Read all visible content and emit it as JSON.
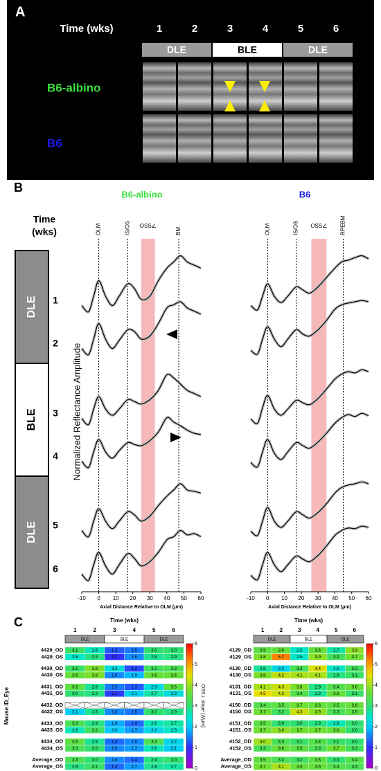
{
  "panel_a": {
    "label": "A",
    "time_label": "Time (wks)",
    "weeks": [
      1,
      2,
      3,
      4,
      5,
      6
    ],
    "phases": [
      "DLE",
      "BLE",
      "DLE"
    ],
    "rows": [
      "B6-albino",
      "B6"
    ]
  },
  "panel_b": {
    "label": "B",
    "titles": [
      "B6-albino",
      "B6"
    ],
    "time_label": [
      "Time",
      "(wks)"
    ],
    "weeks": [
      1,
      2,
      3,
      4,
      5,
      6
    ],
    "phases": [
      "DLE",
      "BLE",
      "DLE"
    ],
    "y_label": "Normalized Reflectance Amplitude"
  },
  "panel_c": {
    "label": "C",
    "row_axis_label": "Mouse ID_Eye"
  },
  "chart_data": [
    {
      "type": "line",
      "xlabel": "Axial Distance Relative to OLM (μm)",
      "x": [
        -10,
        -6,
        -3,
        0,
        4,
        8,
        12,
        17,
        21,
        25,
        30,
        35,
        40,
        44,
        48,
        52,
        56,
        60
      ],
      "xlim": [
        -10,
        60
      ],
      "xticks": [
        -10,
        0,
        10,
        20,
        30,
        40,
        50,
        60
      ],
      "markers": [
        {
          "label": "OLM",
          "x": 0
        },
        {
          "label": "IS/OS",
          "x": 17
        },
        {
          "label": "BM",
          "x": 47
        }
      ],
      "band": {
        "label": "OSS∠",
        "range": [
          25,
          33
        ]
      },
      "band_color": "#f6b8b8",
      "color": "#000000",
      "series": [
        {
          "values": [
            0.15,
            0.05,
            0.3,
            0.55,
            0.3,
            0.15,
            0.3,
            0.5,
            0.42,
            0.25,
            0.3,
            0.55,
            0.75,
            0.85,
            0.95,
            0.85,
            0.8,
            0.75
          ]
        },
        {
          "values": [
            0.15,
            0.05,
            0.3,
            0.55,
            0.3,
            0.15,
            0.28,
            0.45,
            0.42,
            0.3,
            0.35,
            0.55,
            0.8,
            0.85,
            0.9,
            0.8,
            0.75,
            0.7
          ]
        },
        {
          "values": [
            0.15,
            0.05,
            0.3,
            0.5,
            0.3,
            0.2,
            0.3,
            0.45,
            0.42,
            0.38,
            0.45,
            0.6,
            0.85,
            0.8,
            0.7,
            0.6,
            0.55,
            0.5
          ]
        },
        {
          "values": [
            0.15,
            0.05,
            0.3,
            0.5,
            0.3,
            0.2,
            0.32,
            0.45,
            0.42,
            0.4,
            0.48,
            0.62,
            0.85,
            0.78,
            0.72,
            0.65,
            0.6,
            0.58
          ]
        },
        {
          "values": [
            0.15,
            0.05,
            0.3,
            0.5,
            0.3,
            0.18,
            0.3,
            0.45,
            0.4,
            0.3,
            0.38,
            0.55,
            0.7,
            0.8,
            0.9,
            0.8,
            0.78,
            0.75
          ]
        },
        {
          "values": [
            0.15,
            0.05,
            0.3,
            0.5,
            0.28,
            0.15,
            0.3,
            0.48,
            0.4,
            0.28,
            0.35,
            0.5,
            0.7,
            0.75,
            0.85,
            0.78,
            0.8,
            0.75
          ]
        }
      ]
    },
    {
      "type": "line",
      "xlabel": "Axial Distance Relative to OLM (μm)",
      "x": [
        -10,
        -6,
        -3,
        0,
        4,
        8,
        12,
        17,
        21,
        25,
        30,
        35,
        40,
        44,
        48,
        52,
        56,
        60
      ],
      "xlim": [
        -10,
        60
      ],
      "xticks": [
        -10,
        0,
        10,
        20,
        30,
        40,
        50,
        60
      ],
      "markers": [
        {
          "label": "OLM",
          "x": 0
        },
        {
          "label": "IS/OS",
          "x": 17
        },
        {
          "label": "RPEBM",
          "x": 45
        }
      ],
      "band": {
        "label": "OSS∠",
        "range": [
          26,
          35
        ]
      },
      "band_color": "#f6b8b8",
      "color": "#000000",
      "series": [
        {
          "values": [
            0.15,
            0.08,
            0.3,
            0.5,
            0.3,
            0.2,
            0.3,
            0.45,
            0.4,
            0.35,
            0.45,
            0.6,
            0.75,
            0.85,
            0.88,
            0.92,
            0.95,
            0.9
          ]
        },
        {
          "values": [
            0.12,
            0.06,
            0.3,
            0.5,
            0.3,
            0.18,
            0.3,
            0.45,
            0.38,
            0.35,
            0.45,
            0.6,
            0.78,
            0.85,
            0.88,
            0.9,
            0.92,
            0.9
          ]
        },
        {
          "values": [
            0.14,
            0.07,
            0.32,
            0.52,
            0.3,
            0.2,
            0.3,
            0.44,
            0.4,
            0.37,
            0.47,
            0.62,
            0.78,
            0.86,
            0.9,
            0.88,
            0.93,
            0.9
          ]
        },
        {
          "values": [
            0.13,
            0.06,
            0.3,
            0.5,
            0.28,
            0.18,
            0.3,
            0.45,
            0.4,
            0.36,
            0.46,
            0.6,
            0.76,
            0.85,
            0.9,
            0.87,
            0.92,
            0.88
          ]
        },
        {
          "values": [
            0.14,
            0.07,
            0.3,
            0.52,
            0.3,
            0.2,
            0.3,
            0.45,
            0.4,
            0.35,
            0.44,
            0.58,
            0.75,
            0.84,
            0.88,
            0.9,
            0.93,
            0.9
          ]
        },
        {
          "values": [
            0.13,
            0.06,
            0.3,
            0.5,
            0.3,
            0.19,
            0.3,
            0.44,
            0.39,
            0.35,
            0.45,
            0.6,
            0.77,
            0.85,
            0.89,
            0.88,
            0.92,
            0.9
          ]
        }
      ]
    },
    {
      "type": "heatmap",
      "column_label": "Time (wks)",
      "columns": [
        1,
        2,
        3,
        4,
        5,
        6
      ],
      "phases": [
        "DLE",
        "BLE",
        "DLE"
      ],
      "rows": [
        "4429_OD",
        "4429_OS",
        "4430_OD",
        "4430_OS",
        "4431_OD",
        "4431_OS",
        "4432_OD",
        "4432_OS",
        "4433_OD",
        "4433_OS",
        "4434_OD",
        "4434_OS",
        "Average_OD",
        "Average_OS"
      ],
      "values": [
        [
          3.1,
          2.6,
          1.3,
          1.5,
          3.0,
          3.0
        ],
        [
          2.5,
          2.9,
          1.0,
          1.6,
          2.8,
          2.9
        ],
        [
          3.1,
          3.8,
          2.3,
          1.2,
          3.2,
          3.3
        ],
        [
          3.6,
          3.8,
          1.6,
          1.9,
          3.6,
          3.6
        ],
        [
          3.5,
          2.8,
          1.5,
          1.3,
          2.3,
          3.5
        ],
        [
          3.0,
          2.9,
          1.1,
          2.1,
          2.7,
          2.3
        ],
        [
          null,
          null,
          null,
          null,
          null,
          null
        ],
        [
          2.1,
          2.8,
          1.6,
          1.5,
          3.0,
          2.9
        ],
        [
          3.3,
          2.9,
          1.8,
          1.4,
          2.6,
          2.7
        ],
        [
          2.6,
          3.2,
          2.0,
          1.7,
          2.2,
          2.5
        ],
        [
          3.5,
          2.8,
          1.4,
          1.6,
          3.3,
          2.2
        ],
        [
          3.3,
          3.0,
          1.6,
          1.7,
          2.6,
          2.1
        ],
        [
          3.3,
          3.0,
          1.6,
          1.4,
          2.9,
          3.0
        ],
        [
          2.9,
          3.1,
          1.4,
          1.7,
          2.8,
          2.7
        ]
      ],
      "value_labels": [
        [
          "3.1",
          "2.6",
          "1.3",
          "1.5",
          "3.0",
          "3.0"
        ],
        [
          "2.5",
          "2.9",
          "1.0",
          "1.6",
          "2.8",
          "2.9"
        ],
        [
          "3.1",
          "3.8",
          "2.3",
          "1.2",
          "3.2",
          "3.3"
        ],
        [
          "3.6",
          "3.8",
          "1.6",
          "1.9",
          "3.6",
          "3.6"
        ],
        [
          "3.5",
          "2.8",
          "1.5",
          "1.3",
          "2.3",
          "3.5"
        ],
        [
          "3.0",
          "2.9",
          "1.1",
          "2.1",
          "2.7",
          "2.3"
        ],
        [
          null,
          null,
          null,
          null,
          null,
          null
        ],
        [
          "2.1",
          "2.8",
          "1.6",
          "1.5",
          "3.0",
          "2.9"
        ],
        [
          "3.3",
          "2.9",
          "1.8",
          "1.4",
          "2.6",
          "2.7"
        ],
        [
          "2.6",
          "3.2",
          "2.0",
          "1.7",
          "2.2",
          "2.5"
        ],
        [
          "3.5",
          "2.8",
          "1.4",
          "1.6",
          "3.3",
          "2.2"
        ],
        [
          "3.3",
          "3.0",
          "1.6",
          "1.7",
          "2.6",
          "2.1"
        ],
        [
          "3.3",
          "3.0",
          "1.6",
          "1.4",
          "2.9",
          "3.0"
        ],
        [
          "2.9",
          "3.1",
          "1.4",
          "1.7",
          "2.8",
          "2.7"
        ]
      ],
      "zlim": [
        0,
        6
      ],
      "zticks": [
        0,
        1,
        2,
        3,
        4,
        5,
        6
      ],
      "colorbar_label": "OSS⊥ slope (Δ/μm)"
    },
    {
      "type": "heatmap",
      "column_label": "Time (wks)",
      "columns": [
        1,
        2,
        3,
        4,
        5,
        6
      ],
      "phases": [
        "DLE",
        "BLE",
        "DLE"
      ],
      "rows": [
        "4129_OD",
        "4129_OS",
        "4130_OD",
        "4130_OS",
        "4131_OD",
        "4131_OS",
        "4150_OD",
        "4150_OS",
        "4151_OD",
        "4151_OS",
        "4152_OD",
        "4152_OS",
        "Average_OD",
        "Average_OS"
      ],
      "values": [
        [
          3.5,
          3.6,
          2.5,
          3.6,
          2.7,
          3.9
        ],
        [
          3.8,
          5.2,
          2.5,
          3.9,
          3.2,
          3.7
        ],
        [
          2.8,
          2.2,
          3.3,
          4.4,
          2.5,
          3.2
        ],
        [
          3.8,
          4.2,
          4.1,
          4.1,
          2.9,
          3.1
        ],
        [
          4.1,
          4.3,
          3.8,
          2.9,
          3.4,
          3.6
        ],
        [
          4.5,
          4.3,
          3.4,
          2.8,
          3.6,
          3.1
        ],
        [
          3.4,
          3.5,
          3.7,
          3.6,
          3.5,
          3.6
        ],
        [
          3.7,
          3.2,
          4.3,
          3.9,
          3.3,
          3.5
        ],
        [
          3.5,
          3.0,
          3.0,
          2.9,
          2.6,
          3.0
        ],
        [
          3.7,
          3.9,
          3.7,
          3.7,
          3.6,
          3.0
        ],
        [
          4.0,
          3.3,
          3.1,
          3.4,
          3.1,
          3.0
        ],
        [
          3.3,
          3.6,
          3.5,
          3.3,
          3.7,
          3.2
        ],
        [
          3.5,
          3.3,
          3.2,
          3.5,
          3.0,
          3.4
        ],
        [
          3.7,
          4.1,
          3.6,
          3.6,
          3.4,
          3.3
        ]
      ],
      "value_labels": [
        [
          "3.5",
          "3.6",
          "2.5",
          "3.6",
          "2.7",
          "3.9"
        ],
        [
          "3.8",
          "5.2",
          "2.5",
          "3.9",
          "3.2",
          "3.7"
        ],
        [
          "2.8",
          "2.2",
          "3.3",
          "4.4",
          "2.5",
          "3.2"
        ],
        [
          "3.8",
          "4.2",
          "4.1",
          "4.1",
          "2.9",
          "3.1"
        ],
        [
          "4.1",
          "4.3",
          "3.8",
          "2.9",
          "3.4",
          "3.6"
        ],
        [
          "4.5",
          "4.3",
          "3.4",
          "2.8",
          "3.6",
          "3.1"
        ],
        [
          "3.4",
          "3.5",
          "3.7",
          "3.6",
          "3.5",
          "3.6"
        ],
        [
          "3.7",
          "3.2",
          "4.3",
          "3.9",
          "3.3",
          "3.5"
        ],
        [
          "3.5",
          "3.0",
          "3.0",
          "2.9",
          "2.6",
          "3.0"
        ],
        [
          "3.7",
          "3.9",
          "3.7",
          "3.7",
          "3.6",
          "3.0"
        ],
        [
          "4.0",
          "3.3",
          "3.1",
          "3.4",
          "3.1",
          "3.0"
        ],
        [
          "3.3",
          "3.6",
          "3.5",
          "3.3",
          "3.7",
          "3.2"
        ],
        [
          "3.5",
          "3.3",
          "3.2",
          "3.5",
          "3.0",
          "3.4"
        ],
        [
          "3.7",
          "4.1",
          "3.6",
          "3.6",
          "3.4",
          "3.3"
        ]
      ],
      "zlim": [
        0,
        6
      ],
      "zticks": [
        0,
        1,
        2,
        3,
        4,
        5,
        6
      ]
    }
  ]
}
